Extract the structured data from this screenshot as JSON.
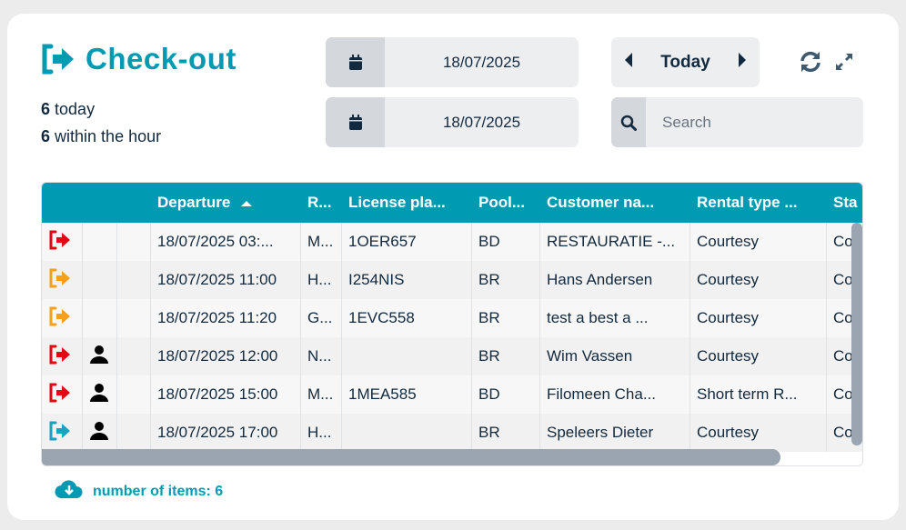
{
  "header": {
    "title": "Check-out",
    "today_count": "6",
    "today_label": "today",
    "hour_count": "6",
    "hour_label": "within the hour"
  },
  "dates": {
    "from": "18/07/2025",
    "to": "18/07/2025"
  },
  "nav": {
    "today_label": "Today"
  },
  "search": {
    "placeholder": "Search",
    "value": ""
  },
  "colors": {
    "accent": "#009bb3",
    "red": "#e30613",
    "orange": "#f7a11a",
    "teal": "#1aa0c0"
  },
  "table": {
    "columns": [
      "",
      "",
      "",
      "Departure",
      "R...",
      "License pla...",
      "Pool...",
      "Customer na...",
      "Rental type ...",
      "Sta"
    ],
    "sort": {
      "column": "Departure",
      "direction": "asc"
    },
    "rows": [
      {
        "status_color": "red",
        "person": false,
        "departure": "18/07/2025 03:...",
        "r": "M...",
        "plate": "1OER657",
        "pool": "BD",
        "customer": "RESTAURATIE -...",
        "rental": "Courtesy",
        "status": "Co"
      },
      {
        "status_color": "orange",
        "person": false,
        "departure": "18/07/2025 11:00",
        "r": "H...",
        "plate": "I254NIS",
        "pool": "BR",
        "customer": "Hans Andersen",
        "rental": "Courtesy",
        "status": "Co"
      },
      {
        "status_color": "orange",
        "person": false,
        "departure": "18/07/2025 11:20",
        "r": "G...",
        "plate": "1EVC558",
        "pool": "BR",
        "customer": "test a best a ...",
        "rental": "Courtesy",
        "status": "Co"
      },
      {
        "status_color": "red",
        "person": true,
        "departure": "18/07/2025 12:00",
        "r": "N...",
        "plate": "",
        "pool": "BR",
        "customer": "Wim Vassen",
        "rental": "Courtesy",
        "status": "Co"
      },
      {
        "status_color": "red",
        "person": true,
        "departure": "18/07/2025 15:00",
        "r": "M...",
        "plate": "1MEA585",
        "pool": "BD",
        "customer": "Filomeen Cha...",
        "rental": "Short term R...",
        "status": "Co"
      },
      {
        "status_color": "teal",
        "person": true,
        "departure": "18/07/2025 17:00",
        "r": "H...",
        "plate": "",
        "pool": "BR",
        "customer": "Speleers Dieter",
        "rental": "Courtesy",
        "status": "Co"
      }
    ]
  },
  "footer": {
    "items_label": "number of items: 6"
  }
}
